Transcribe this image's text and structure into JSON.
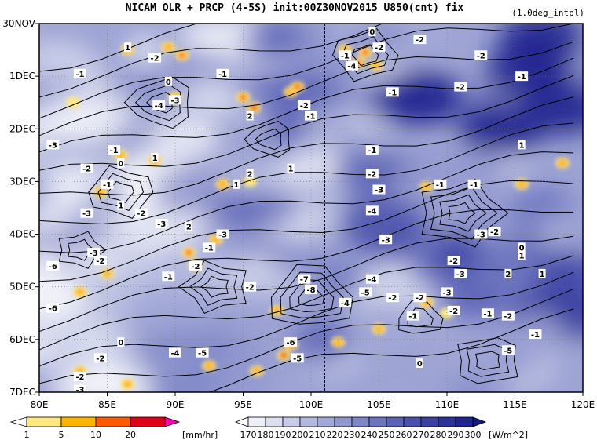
{
  "title": "NICAM  OLR + PRCP (4-5S) init:00Z30NOV2015  U850(cnt) fix",
  "note": "(1.0deg_intpl)",
  "chart_data": {
    "type": "heatmap",
    "title": "NICAM  OLR + PRCP (4-5S) init:00Z30NOV2015  U850(cnt) fix",
    "x_ticks": [
      "80E",
      "85E",
      "90E",
      "95E",
      "100E",
      "105E",
      "110E",
      "115E",
      "120E"
    ],
    "x_range": [
      80,
      120
    ],
    "y_ticks": [
      "30NOV",
      "1DEC",
      "2DEC",
      "3DEC",
      "4DEC",
      "5DEC",
      "6DEC",
      "7DEC"
    ],
    "y_range_days": [
      0,
      7
    ],
    "grid": true,
    "reference_line_x": 101,
    "prcp_colorbar": {
      "unit": "[mm/hr]",
      "ticks": [
        "1",
        "5",
        "10",
        "20"
      ],
      "colors": [
        "#ffffff",
        "#ffe97f",
        "#ffb400",
        "#ff5a00",
        "#e0001a",
        "#ff00aa"
      ]
    },
    "olr_colorbar": {
      "unit": "[W/m^2]",
      "ticks": [
        "170",
        "180",
        "190",
        "200",
        "210",
        "220",
        "230",
        "240",
        "250",
        "260",
        "270",
        "280",
        "290",
        "300"
      ],
      "colors": [
        "#ffffff",
        "#eef0f8",
        "#dcdff0",
        "#c8cce8",
        "#b4b9df",
        "#a2a8d7",
        "#9097cf",
        "#7e86c7",
        "#6c74bf",
        "#5a62b6",
        "#4a51ad",
        "#3b41a3",
        "#2d3299",
        "#20248f",
        "#151a80"
      ]
    },
    "contour_labels": [
      {
        "lon": 86.5,
        "day": 0.45,
        "text": "1"
      },
      {
        "lon": 88.5,
        "day": 0.65,
        "text": "-2"
      },
      {
        "lon": 83.0,
        "day": 0.95,
        "text": "-1"
      },
      {
        "lon": 89.5,
        "day": 1.1,
        "text": "0"
      },
      {
        "lon": 90.0,
        "day": 1.45,
        "text": "-3"
      },
      {
        "lon": 88.8,
        "day": 1.55,
        "text": "-4"
      },
      {
        "lon": 93.5,
        "day": 0.95,
        "text": "-1"
      },
      {
        "lon": 95.5,
        "day": 1.75,
        "text": "2"
      },
      {
        "lon": 99.5,
        "day": 1.55,
        "text": "-2"
      },
      {
        "lon": 100.0,
        "day": 1.75,
        "text": "-1"
      },
      {
        "lon": 104.5,
        "day": 0.15,
        "text": "0"
      },
      {
        "lon": 102.5,
        "day": 0.6,
        "text": "-1"
      },
      {
        "lon": 103.0,
        "day": 0.8,
        "text": "-4"
      },
      {
        "lon": 105.0,
        "day": 0.45,
        "text": "-2"
      },
      {
        "lon": 108.0,
        "day": 0.3,
        "text": "-2"
      },
      {
        "lon": 112.5,
        "day": 0.6,
        "text": "-2"
      },
      {
        "lon": 115.5,
        "day": 1.0,
        "text": "-1"
      },
      {
        "lon": 111.0,
        "day": 1.2,
        "text": "-2"
      },
      {
        "lon": 106.0,
        "day": 1.3,
        "text": "-1"
      },
      {
        "lon": 115.5,
        "day": 2.3,
        "text": "1"
      },
      {
        "lon": 81.0,
        "day": 2.3,
        "text": "-3"
      },
      {
        "lon": 83.5,
        "day": 2.75,
        "text": "-2"
      },
      {
        "lon": 85.5,
        "day": 2.4,
        "text": "-1"
      },
      {
        "lon": 86.0,
        "day": 2.65,
        "text": "0"
      },
      {
        "lon": 88.5,
        "day": 2.55,
        "text": "1"
      },
      {
        "lon": 85.0,
        "day": 3.05,
        "text": "-1"
      },
      {
        "lon": 86.0,
        "day": 3.45,
        "text": "1"
      },
      {
        "lon": 87.5,
        "day": 3.6,
        "text": "-2"
      },
      {
        "lon": 89.0,
        "day": 3.8,
        "text": "-3"
      },
      {
        "lon": 91.0,
        "day": 3.85,
        "text": "2"
      },
      {
        "lon": 83.5,
        "day": 3.6,
        "text": "-3"
      },
      {
        "lon": 95.5,
        "day": 2.85,
        "text": "2"
      },
      {
        "lon": 94.5,
        "day": 3.05,
        "text": "1"
      },
      {
        "lon": 98.5,
        "day": 2.75,
        "text": "1"
      },
      {
        "lon": 104.5,
        "day": 2.4,
        "text": "-1"
      },
      {
        "lon": 104.5,
        "day": 2.85,
        "text": "-2"
      },
      {
        "lon": 105.0,
        "day": 3.15,
        "text": "-3"
      },
      {
        "lon": 104.5,
        "day": 3.55,
        "text": "-4"
      },
      {
        "lon": 105.5,
        "day": 4.1,
        "text": "-3"
      },
      {
        "lon": 109.5,
        "day": 3.05,
        "text": "-1"
      },
      {
        "lon": 112.0,
        "day": 3.05,
        "text": "-1"
      },
      {
        "lon": 112.5,
        "day": 4.0,
        "text": "-3"
      },
      {
        "lon": 113.5,
        "day": 3.95,
        "text": "-2"
      },
      {
        "lon": 115.5,
        "day": 4.25,
        "text": "0"
      },
      {
        "lon": 115.5,
        "day": 4.4,
        "text": "1"
      },
      {
        "lon": 110.5,
        "day": 4.5,
        "text": "-2"
      },
      {
        "lon": 111.0,
        "day": 4.75,
        "text": "-3"
      },
      {
        "lon": 114.5,
        "day": 4.75,
        "text": "2"
      },
      {
        "lon": 117.0,
        "day": 4.75,
        "text": "1"
      },
      {
        "lon": 84.0,
        "day": 4.35,
        "text": "-3"
      },
      {
        "lon": 84.5,
        "day": 4.5,
        "text": "-2"
      },
      {
        "lon": 81.0,
        "day": 4.6,
        "text": "-6"
      },
      {
        "lon": 92.5,
        "day": 4.25,
        "text": "-1"
      },
      {
        "lon": 91.5,
        "day": 4.6,
        "text": "-2"
      },
      {
        "lon": 89.5,
        "day": 4.8,
        "text": "-1"
      },
      {
        "lon": 95.5,
        "day": 5.0,
        "text": "-2"
      },
      {
        "lon": 93.5,
        "day": 4.0,
        "text": "-3"
      },
      {
        "lon": 99.5,
        "day": 4.85,
        "text": "-7"
      },
      {
        "lon": 100.0,
        "day": 5.05,
        "text": "-8"
      },
      {
        "lon": 104.5,
        "day": 4.85,
        "text": "-4"
      },
      {
        "lon": 104.0,
        "day": 5.1,
        "text": "-5"
      },
      {
        "lon": 102.5,
        "day": 5.3,
        "text": "-4"
      },
      {
        "lon": 106.0,
        "day": 5.2,
        "text": "-2"
      },
      {
        "lon": 108.0,
        "day": 5.2,
        "text": "-2"
      },
      {
        "lon": 110.0,
        "day": 5.1,
        "text": "-3"
      },
      {
        "lon": 107.5,
        "day": 5.55,
        "text": "-1"
      },
      {
        "lon": 110.5,
        "day": 5.45,
        "text": "-2"
      },
      {
        "lon": 113.0,
        "day": 5.5,
        "text": "-1"
      },
      {
        "lon": 114.5,
        "day": 5.55,
        "text": "-2"
      },
      {
        "lon": 116.5,
        "day": 5.9,
        "text": "-1"
      },
      {
        "lon": 114.5,
        "day": 6.2,
        "text": "-5"
      },
      {
        "lon": 81.0,
        "day": 5.4,
        "text": "-6"
      },
      {
        "lon": 86.0,
        "day": 6.05,
        "text": "0"
      },
      {
        "lon": 90.0,
        "day": 6.25,
        "text": "-4"
      },
      {
        "lon": 92.0,
        "day": 6.25,
        "text": "-5"
      },
      {
        "lon": 98.5,
        "day": 6.05,
        "text": "-6"
      },
      {
        "lon": 99.0,
        "day": 6.35,
        "text": "-5"
      },
      {
        "lon": 108.0,
        "day": 6.45,
        "text": "0"
      },
      {
        "lon": 84.5,
        "day": 6.35,
        "text": "-2"
      },
      {
        "lon": 83.0,
        "day": 6.7,
        "text": "-2"
      },
      {
        "lon": 83.0,
        "day": 6.95,
        "text": "-3"
      }
    ],
    "prcp_patches": [
      {
        "lon": 86.5,
        "day": 0.5,
        "mm_hr": 6
      },
      {
        "lon": 89.5,
        "day": 0.45,
        "mm_hr": 8
      },
      {
        "lon": 90.5,
        "day": 0.6,
        "mm_hr": 12
      },
      {
        "lon": 95.0,
        "day": 1.4,
        "mm_hr": 12
      },
      {
        "lon": 95.8,
        "day": 1.6,
        "mm_hr": 20
      },
      {
        "lon": 98.5,
        "day": 1.3,
        "mm_hr": 8
      },
      {
        "lon": 99.0,
        "day": 1.2,
        "mm_hr": 18
      },
      {
        "lon": 102.5,
        "day": 0.5,
        "mm_hr": 8
      },
      {
        "lon": 104.0,
        "day": 0.55,
        "mm_hr": 15
      },
      {
        "lon": 104.8,
        "day": 0.8,
        "mm_hr": 9
      },
      {
        "lon": 103.5,
        "day": 0.75,
        "mm_hr": 12
      },
      {
        "lon": 90.0,
        "day": 1.4,
        "mm_hr": 5
      },
      {
        "lon": 82.5,
        "day": 1.5,
        "mm_hr": 4
      },
      {
        "lon": 86.0,
        "day": 2.5,
        "mm_hr": 5
      },
      {
        "lon": 88.5,
        "day": 2.6,
        "mm_hr": 6
      },
      {
        "lon": 84.5,
        "day": 3.2,
        "mm_hr": 5
      },
      {
        "lon": 93.5,
        "day": 3.05,
        "mm_hr": 6
      },
      {
        "lon": 95.5,
        "day": 3.0,
        "mm_hr": 4
      },
      {
        "lon": 91.0,
        "day": 4.35,
        "mm_hr": 10
      },
      {
        "lon": 91.5,
        "day": 4.6,
        "mm_hr": 14
      },
      {
        "lon": 85.0,
        "day": 4.75,
        "mm_hr": 6
      },
      {
        "lon": 83.0,
        "day": 5.1,
        "mm_hr": 5
      },
      {
        "lon": 93.0,
        "day": 4.1,
        "mm_hr": 6
      },
      {
        "lon": 115.5,
        "day": 3.05,
        "mm_hr": 6
      },
      {
        "lon": 118.5,
        "day": 2.65,
        "mm_hr": 8
      },
      {
        "lon": 108.5,
        "day": 5.3,
        "mm_hr": 6
      },
      {
        "lon": 110.0,
        "day": 5.5,
        "mm_hr": 4
      },
      {
        "lon": 98.5,
        "day": 6.1,
        "mm_hr": 12
      },
      {
        "lon": 98.0,
        "day": 6.3,
        "mm_hr": 22
      },
      {
        "lon": 96.0,
        "day": 6.6,
        "mm_hr": 8
      },
      {
        "lon": 102.0,
        "day": 6.05,
        "mm_hr": 7
      },
      {
        "lon": 92.5,
        "day": 6.5,
        "mm_hr": 5
      },
      {
        "lon": 86.5,
        "day": 6.85,
        "mm_hr": 5
      },
      {
        "lon": 83.0,
        "day": 6.6,
        "mm_hr": 5
      },
      {
        "lon": 97.5,
        "day": 5.45,
        "mm_hr": 6
      },
      {
        "lon": 105.0,
        "day": 5.8,
        "mm_hr": 5
      },
      {
        "lon": 108.5,
        "day": 3.1,
        "mm_hr": 5
      }
    ]
  }
}
